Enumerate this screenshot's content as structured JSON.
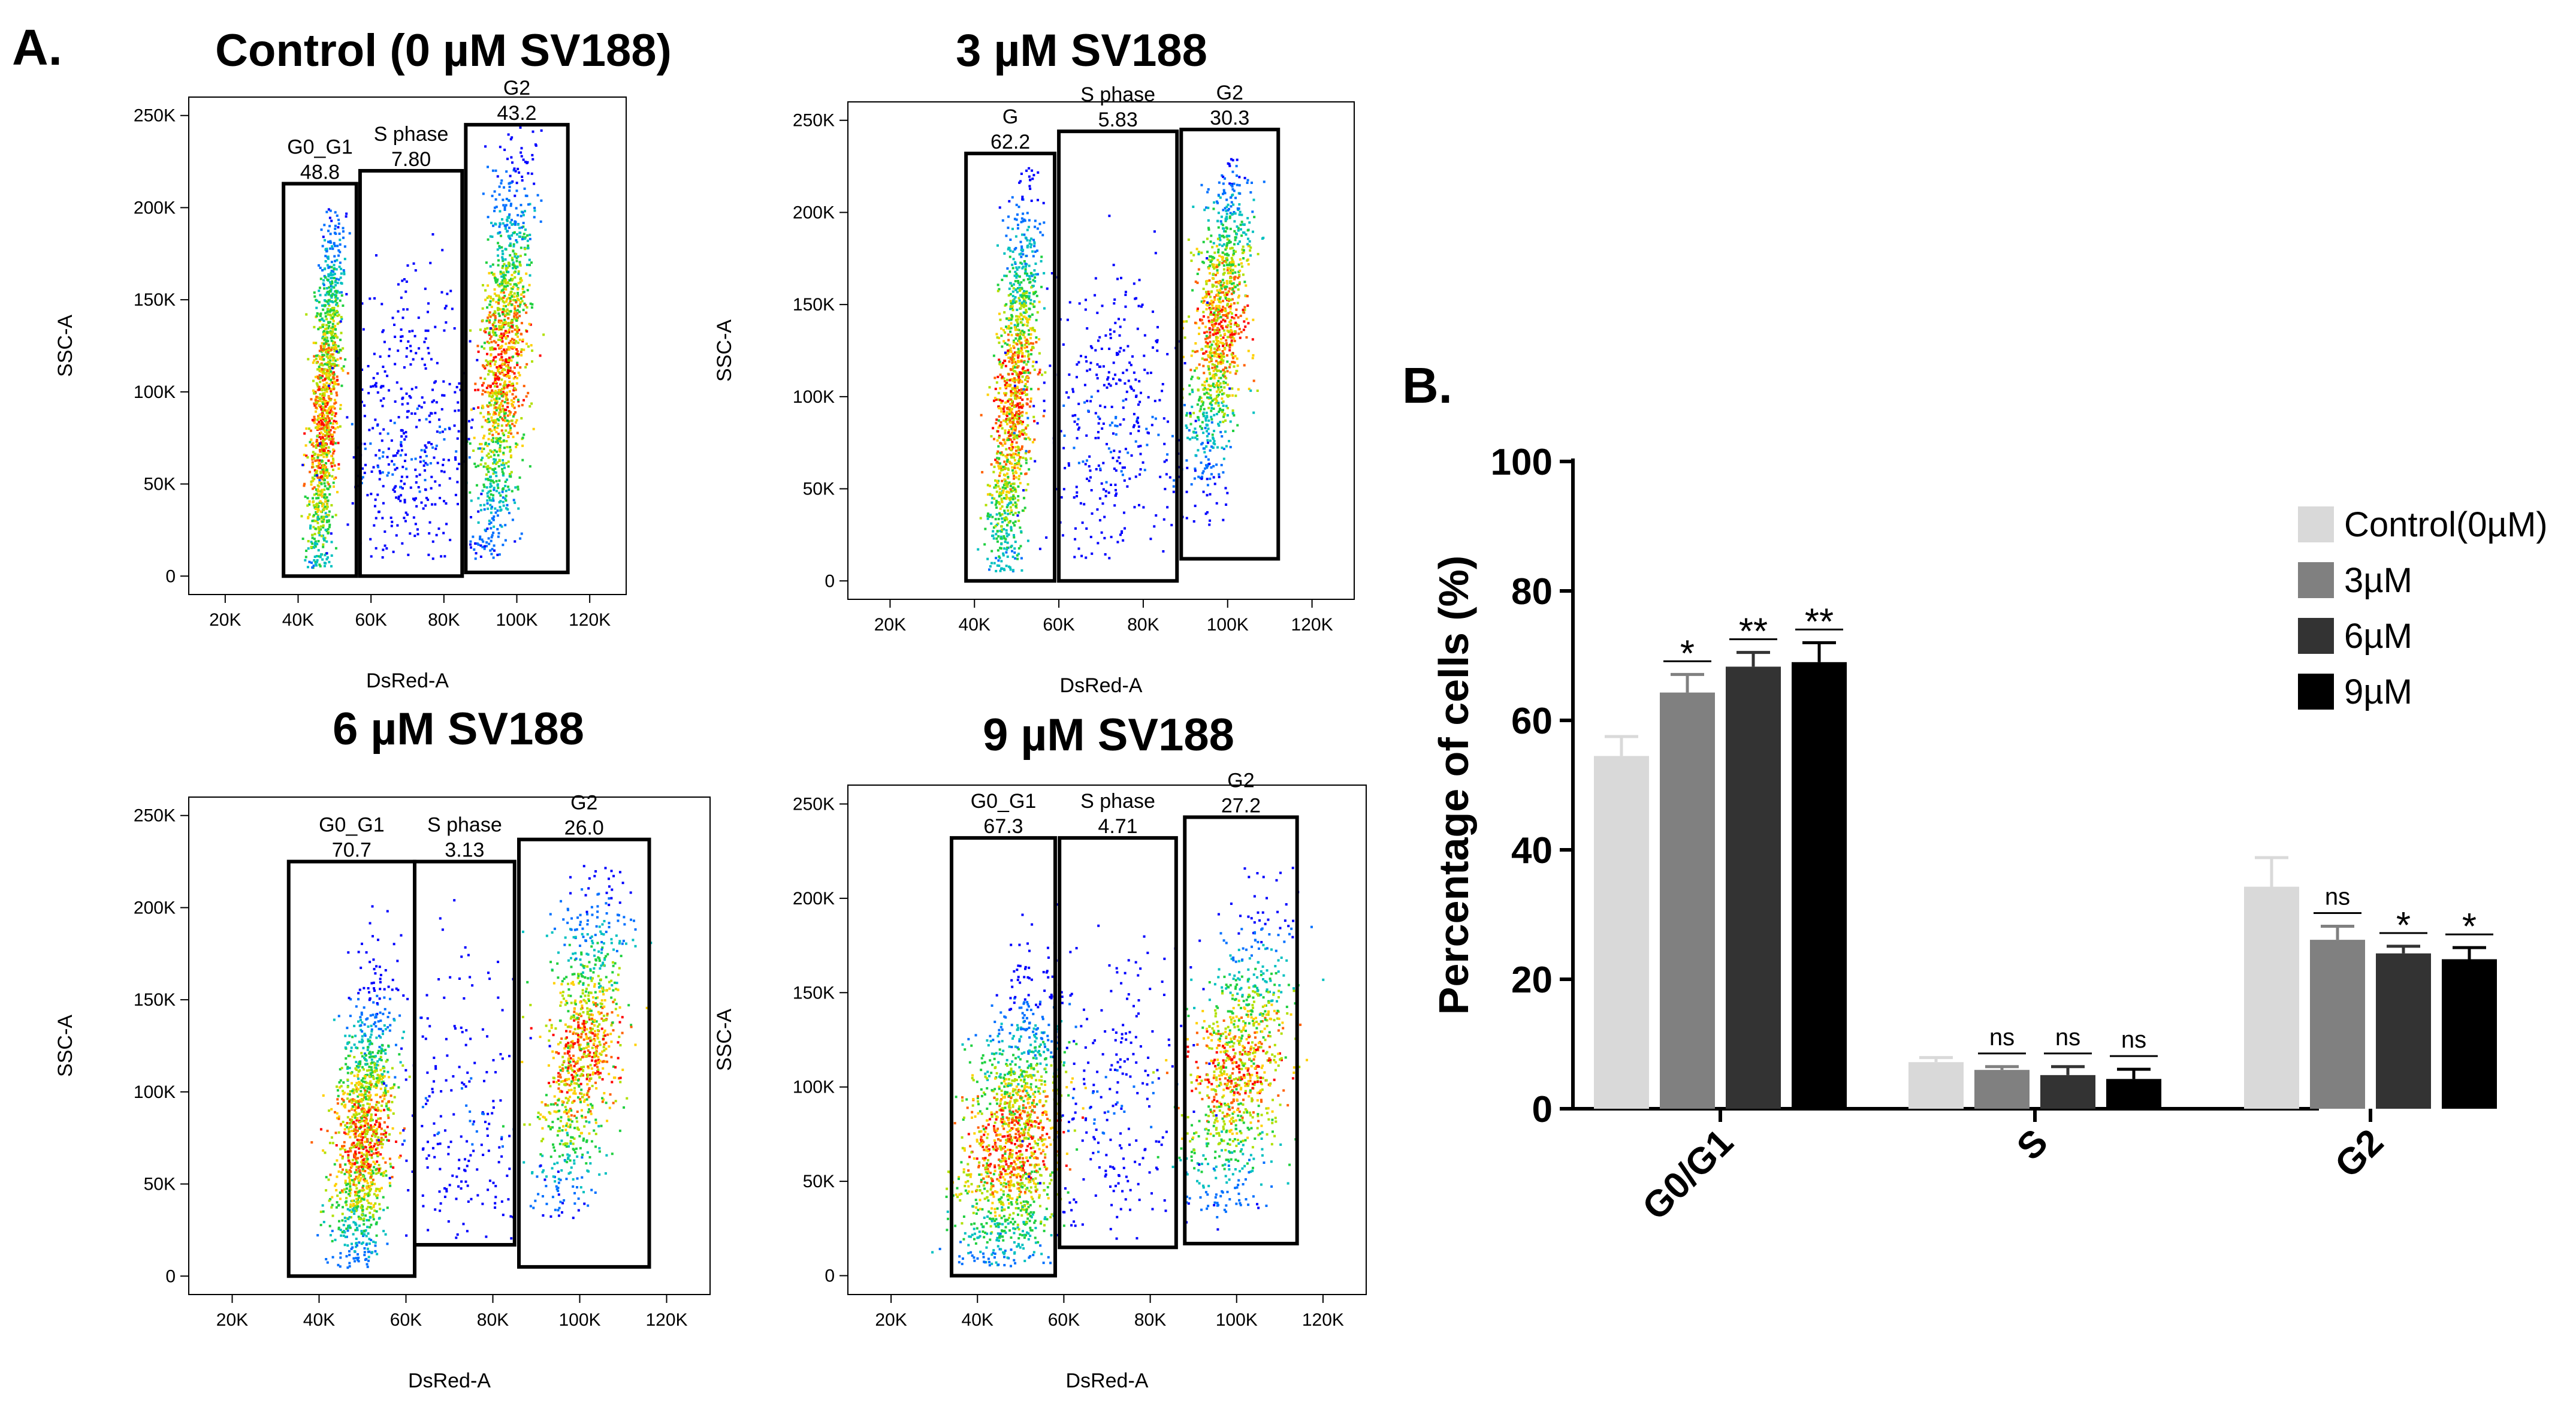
{
  "panel_labels": {
    "a": "A.",
    "b": "B."
  },
  "chart_data": [
    {
      "type": "scatter",
      "title": "Control (0 µM SV188)",
      "xlabel": "DsRed-A",
      "ylabel": "SSC-A",
      "xlim": [
        10000,
        130000
      ],
      "ylim": [
        -10000,
        260000
      ],
      "xticks": [
        20000,
        40000,
        60000,
        80000,
        100000,
        120000
      ],
      "xtick_labels": [
        "20K",
        "40K",
        "60K",
        "80K",
        "100K",
        "120K"
      ],
      "yticks": [
        0,
        50000,
        100000,
        150000,
        200000,
        250000
      ],
      "ytick_labels": [
        "0",
        "50K",
        "100K",
        "150K",
        "200K",
        "250K"
      ],
      "gates": [
        {
          "name": "G0_G1",
          "value": "48.8",
          "x": [
            36000,
            56000
          ],
          "y": [
            0,
            213000
          ]
        },
        {
          "name": "S phase",
          "value": "7.80",
          "x": [
            57000,
            85000
          ],
          "y": [
            0,
            220000
          ]
        },
        {
          "name": "G2",
          "value": "43.2",
          "x": [
            86000,
            114000
          ],
          "y": [
            2000,
            245000
          ]
        }
      ],
      "clusters": [
        {
          "x": 47000,
          "y": 85000,
          "n": 1300,
          "slope": 4,
          "sy": 60000,
          "sx": 1800,
          "ymin": 5000,
          "ymax": 200000
        },
        {
          "x": 96000,
          "y": 115000,
          "n": 1300,
          "slope": 3,
          "sy": 55000,
          "sx": 3200,
          "ymin": 10000,
          "ymax": 245000
        },
        {
          "x": 70000,
          "y": 70000,
          "n": 450,
          "slope": 0,
          "sy": 45000,
          "sx": 9000,
          "ymin": 10000,
          "ymax": 210000
        }
      ]
    },
    {
      "type": "scatter",
      "title": "3 µM SV188",
      "xlabel": "DsRed-A",
      "ylabel": "SSC-A",
      "xlim": [
        10000,
        130000
      ],
      "ylim": [
        -10000,
        260000
      ],
      "xticks": [
        20000,
        40000,
        60000,
        80000,
        100000,
        120000
      ],
      "xtick_labels": [
        "20K",
        "40K",
        "60K",
        "80K",
        "100K",
        "120K"
      ],
      "yticks": [
        0,
        50000,
        100000,
        150000,
        200000,
        250000
      ],
      "ytick_labels": [
        "0",
        "50K",
        "100K",
        "150K",
        "200K",
        "250K"
      ],
      "gates": [
        {
          "name": "G",
          "value": "62.2",
          "x": [
            38000,
            59000
          ],
          "y": [
            0,
            232000
          ]
        },
        {
          "name": "S phase",
          "value": "5.83",
          "x": [
            60000,
            88000
          ],
          "y": [
            0,
            244000
          ]
        },
        {
          "name": "G2",
          "value": "30.3",
          "x": [
            89000,
            112000
          ],
          "y": [
            12000,
            245000
          ]
        }
      ],
      "clusters": [
        {
          "x": 49000,
          "y": 95000,
          "n": 1300,
          "slope": 3.5,
          "sy": 60000,
          "sx": 2200,
          "ymin": 5000,
          "ymax": 225000
        },
        {
          "x": 98000,
          "y": 140000,
          "n": 1100,
          "slope": 2.5,
          "sy": 45000,
          "sx": 3000,
          "ymin": 30000,
          "ymax": 230000
        },
        {
          "x": 72000,
          "y": 80000,
          "n": 380,
          "slope": 0,
          "sy": 45000,
          "sx": 9000,
          "ymin": 10000,
          "ymax": 230000
        }
      ]
    },
    {
      "type": "scatter",
      "title": "6 µM SV188",
      "xlabel": "DsRed-A",
      "ylabel": "SSC-A",
      "xlim": [
        10000,
        130000
      ],
      "ylim": [
        -10000,
        260000
      ],
      "xticks": [
        20000,
        40000,
        60000,
        80000,
        100000,
        120000
      ],
      "xtick_labels": [
        "20K",
        "40K",
        "60K",
        "80K",
        "100K",
        "120K"
      ],
      "yticks": [
        0,
        50000,
        100000,
        150000,
        200000,
        250000
      ],
      "ytick_labels": [
        "0",
        "50K",
        "100K",
        "150K",
        "200K",
        "250K"
      ],
      "gates": [
        {
          "name": "G0_G1",
          "value": "70.7",
          "x": [
            33000,
            62000
          ],
          "y": [
            0,
            225000
          ]
        },
        {
          "name": "S phase",
          "value": "3.13",
          "x": [
            62000,
            85000
          ],
          "y": [
            17000,
            225000
          ]
        },
        {
          "name": "G2",
          "value": "26.0",
          "x": [
            86000,
            116000
          ],
          "y": [
            5000,
            237000
          ]
        }
      ],
      "clusters": [
        {
          "x": 50000,
          "y": 75000,
          "n": 1300,
          "slope": 3,
          "sy": 40000,
          "sx": 3200,
          "ymin": 5000,
          "ymax": 210000
        },
        {
          "x": 100000,
          "y": 120000,
          "n": 1000,
          "slope": 2,
          "sy": 45000,
          "sx": 4500,
          "ymin": 30000,
          "ymax": 225000
        },
        {
          "x": 72000,
          "y": 90000,
          "n": 220,
          "slope": 0,
          "sy": 45000,
          "sx": 8000,
          "ymin": 20000,
          "ymax": 220000
        }
      ]
    },
    {
      "type": "scatter",
      "title": "9 µM SV188",
      "xlabel": "DsRed-A",
      "ylabel": "SSC-A",
      "xlim": [
        10000,
        130000
      ],
      "ylim": [
        -10000,
        260000
      ],
      "xticks": [
        20000,
        40000,
        60000,
        80000,
        100000,
        120000
      ],
      "xtick_labels": [
        "20K",
        "40K",
        "60K",
        "80K",
        "100K",
        "120K"
      ],
      "yticks": [
        0,
        50000,
        100000,
        150000,
        200000,
        250000
      ],
      "ytick_labels": [
        "0",
        "50K",
        "100K",
        "150K",
        "200K",
        "250K"
      ],
      "gates": [
        {
          "name": "G0_G1",
          "value": "67.3",
          "x": [
            34000,
            58000
          ],
          "y": [
            0,
            232000
          ]
        },
        {
          "name": "S phase",
          "value": "4.71",
          "x": [
            59000,
            86000
          ],
          "y": [
            15000,
            232000
          ]
        },
        {
          "name": "G2",
          "value": "27.2",
          "x": [
            88000,
            114000
          ],
          "y": [
            17000,
            243000
          ]
        }
      ],
      "clusters": [
        {
          "x": 48000,
          "y": 70000,
          "n": 1500,
          "slope": 2,
          "sy": 40000,
          "sx": 5500,
          "ymin": 5000,
          "ymax": 200000
        },
        {
          "x": 100000,
          "y": 110000,
          "n": 1000,
          "slope": 1.5,
          "sy": 40000,
          "sx": 5500,
          "ymin": 25000,
          "ymax": 220000
        },
        {
          "x": 72000,
          "y": 85000,
          "n": 250,
          "slope": 0,
          "sy": 45000,
          "sx": 9000,
          "ymin": 20000,
          "ymax": 225000
        }
      ]
    },
    {
      "type": "bar",
      "title": "",
      "xlabel": "",
      "ylabel": "Percentage of cells (%)",
      "ylim": [
        0,
        100
      ],
      "yticks": [
        0,
        20,
        40,
        60,
        80,
        100
      ],
      "categories": [
        "G0/G1",
        "S",
        "G2"
      ],
      "legend_position": "top-right",
      "series": [
        {
          "name": "Control(0µM)",
          "color": "#d9d9d9",
          "values": [
            54.5,
            7.2,
            34.3
          ],
          "errors": [
            3.0,
            0.7,
            4.5
          ],
          "significance": [
            "",
            "",
            ""
          ]
        },
        {
          "name": "3µM",
          "color": "#808080",
          "values": [
            64.3,
            6.0,
            26.1
          ],
          "errors": [
            2.8,
            0.5,
            2.1
          ],
          "significance": [
            "*",
            "ns",
            "ns"
          ]
        },
        {
          "name": "6µM",
          "color": "#333333",
          "values": [
            68.3,
            5.2,
            24.0
          ],
          "errors": [
            2.2,
            1.3,
            1.1
          ],
          "significance": [
            "**",
            "ns",
            "*"
          ]
        },
        {
          "name": "9µM",
          "color": "#000000",
          "values": [
            69.0,
            4.6,
            23.1
          ],
          "errors": [
            3.0,
            1.5,
            1.8
          ],
          "significance": [
            "**",
            "ns",
            "*"
          ]
        }
      ]
    }
  ]
}
